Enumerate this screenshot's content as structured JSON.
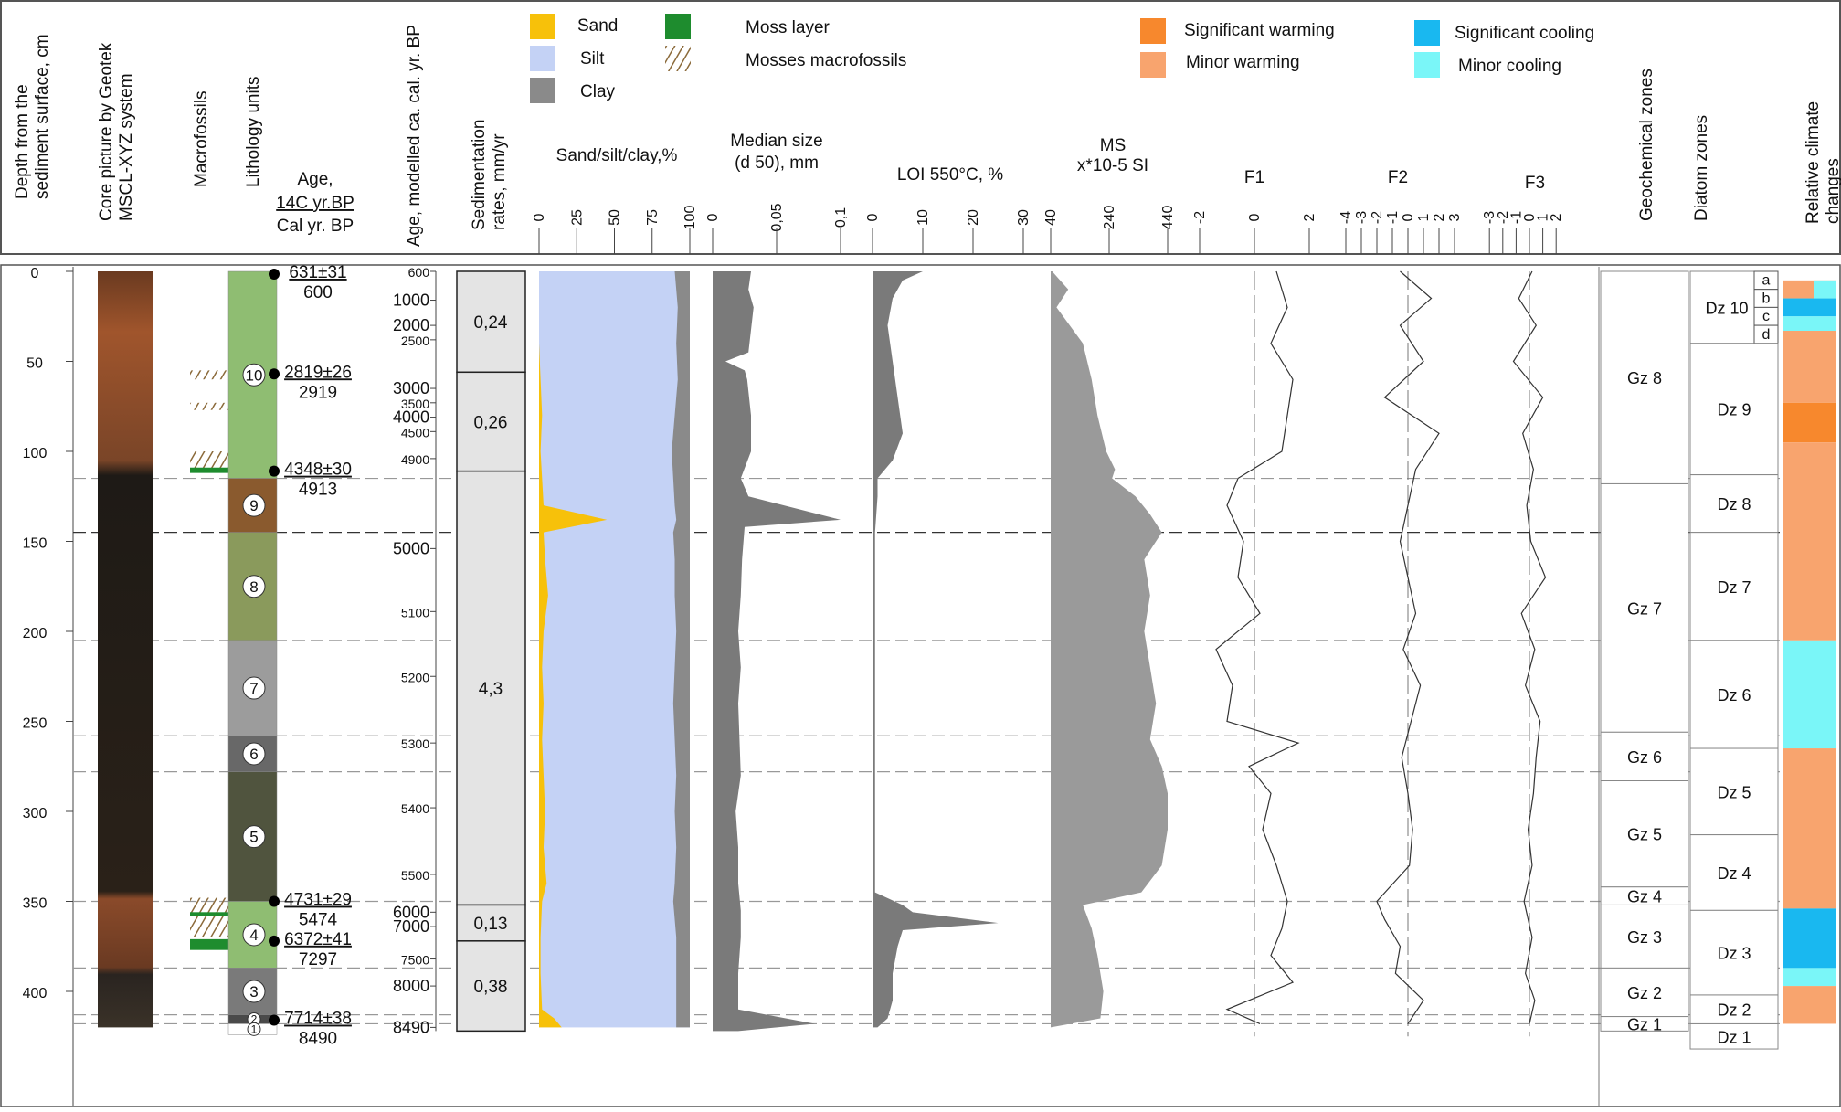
{
  "colors": {
    "sand": "#f7c10a",
    "silt": "#c4d2f5",
    "clay": "#8a8a8a",
    "moss": "#1e8c2e",
    "mosses_macro": "#8b6a3a",
    "sig_warm": "#f7882d",
    "minor_warm": "#f8a46e",
    "sig_cool": "#19b8f0",
    "minor_cool": "#7af6f8",
    "curve_fill": "#7a7a7a",
    "ms_fill": "#9a9a9a"
  },
  "headers": {
    "depth": [
      "Depth from the",
      "sediment surface, cm"
    ],
    "core": [
      "Core picture by Geotek",
      "MSCL-XYZ system"
    ],
    "macrofossils": "Macrofossils",
    "lithology": "Lithology units",
    "age14c": [
      "Age,",
      "14C yr.BP",
      "Cal yr. BP"
    ],
    "age_model": "Age, modelled ca. cal. yr. BP",
    "sed_rates": [
      "Sedimentation",
      "rates, mm/yr"
    ],
    "sand_silt_clay": "Sand/silt/clay,%",
    "median": [
      "Median size",
      "(d 50), mm"
    ],
    "loi": "LOI 550°C, %",
    "ms": [
      "MS",
      "x*10-5 SI"
    ],
    "f1": "F1",
    "f2": "F2",
    "f3": "F3",
    "geochem": "Geochemical zones",
    "diatom": "Diatom zones",
    "climate": [
      "Relative climate",
      "changes"
    ]
  },
  "legend": [
    {
      "label": "Sand",
      "color": "sand"
    },
    {
      "label": "Silt",
      "color": "silt"
    },
    {
      "label": "Clay",
      "color": "clay"
    },
    {
      "label": "Moss layer",
      "color": "moss"
    },
    {
      "label": "Mosses macrofossils",
      "color": "mosses_macro",
      "pattern": "hatch"
    },
    {
      "label": "Significant warming",
      "color": "sig_warm"
    },
    {
      "label": "Minor warming",
      "color": "minor_warm"
    },
    {
      "label": "Significant cooling",
      "color": "sig_cool"
    },
    {
      "label": "Minor cooling",
      "color": "minor_cool"
    }
  ],
  "chart_data": {
    "type": "stratigraphic",
    "depth_axis": {
      "label": "Depth from the sediment surface, cm",
      "ticks": [
        0,
        50,
        100,
        150,
        200,
        250,
        300,
        350,
        400
      ],
      "range": [
        0,
        425
      ]
    },
    "lithology_units": [
      {
        "unit": "10",
        "top": 0,
        "bottom": 115,
        "color": "#8fbd72"
      },
      {
        "unit": "9",
        "top": 115,
        "bottom": 145,
        "color": "#8a5a2e"
      },
      {
        "unit": "8",
        "top": 145,
        "bottom": 205,
        "color": "#8a9a5c"
      },
      {
        "unit": "7",
        "top": 205,
        "bottom": 258,
        "color": "#9c9c9c"
      },
      {
        "unit": "6",
        "top": 258,
        "bottom": 278,
        "color": "#686868"
      },
      {
        "unit": "5",
        "top": 278,
        "bottom": 350,
        "color": "#50543e"
      },
      {
        "unit": "4",
        "top": 350,
        "bottom": 387,
        "color": "#8fbd72"
      },
      {
        "unit": "3",
        "top": 387,
        "bottom": 413,
        "color": "#7a7a7a"
      },
      {
        "unit": "2",
        "top": 413,
        "bottom": 418,
        "color": "#4a4a4a"
      },
      {
        "unit": "1",
        "top": 418,
        "bottom": 424,
        "color": "#ffffff"
      }
    ],
    "macrofossils": [
      {
        "type": "mosses_macro",
        "top": 55,
        "bottom": 60
      },
      {
        "type": "mosses_macro",
        "top": 73,
        "bottom": 77
      },
      {
        "type": "mosses_macro",
        "top": 100,
        "bottom": 110
      },
      {
        "type": "moss",
        "top": 109,
        "bottom": 112
      },
      {
        "type": "mosses_macro",
        "top": 348,
        "bottom": 370
      },
      {
        "type": "moss",
        "top": 356,
        "bottom": 358
      },
      {
        "type": "moss",
        "top": 371,
        "bottom": 377
      }
    ],
    "radiocarbon_dates": [
      {
        "depth": 0,
        "c14": "631±31",
        "cal": "600"
      },
      {
        "depth": 57,
        "c14": "2819±26",
        "cal": "2919"
      },
      {
        "depth": 111,
        "c14": "4348±30",
        "cal": "4913"
      },
      {
        "depth": 350,
        "c14": "4731±29",
        "cal": "5474"
      },
      {
        "depth": 372,
        "c14": "6372±41",
        "cal": "7297"
      },
      {
        "depth": 416,
        "c14": "7714±38",
        "cal": "8490"
      }
    ],
    "age_model_ticks": [
      {
        "age": "600",
        "depth": 0
      },
      {
        "age": "1000",
        "depth": 16
      },
      {
        "age": "2000",
        "depth": 30
      },
      {
        "age": "2500",
        "depth": 38
      },
      {
        "age": "3000",
        "depth": 65
      },
      {
        "age": "3500",
        "depth": 73
      },
      {
        "age": "4000",
        "depth": 81
      },
      {
        "age": "4500",
        "depth": 89
      },
      {
        "age": "4900",
        "depth": 104
      },
      {
        "age": "5000",
        "depth": 154
      },
      {
        "age": "5100",
        "depth": 189
      },
      {
        "age": "5200",
        "depth": 225
      },
      {
        "age": "5300",
        "depth": 262
      },
      {
        "age": "5400",
        "depth": 298
      },
      {
        "age": "5500",
        "depth": 335
      },
      {
        "age": "6000",
        "depth": 356
      },
      {
        "age": "7000",
        "depth": 364
      },
      {
        "age": "7500",
        "depth": 382
      },
      {
        "age": "8000",
        "depth": 397
      },
      {
        "age": "8490",
        "depth": 420
      }
    ],
    "sed_rates": [
      {
        "top": 0,
        "bottom": 56,
        "value": "0,24"
      },
      {
        "top": 56,
        "bottom": 111,
        "value": "0,26"
      },
      {
        "top": 111,
        "bottom": 352,
        "value": "4,3"
      },
      {
        "top": 352,
        "bottom": 372,
        "value": "0,13"
      },
      {
        "top": 372,
        "bottom": 422,
        "value": "0,38"
      }
    ],
    "grain_size": {
      "ticks": [
        "0",
        "25",
        "50",
        "75",
        "100"
      ],
      "range": [
        0,
        100
      ],
      "depth": [
        0,
        20,
        40,
        60,
        80,
        100,
        115,
        130,
        138,
        145,
        160,
        180,
        200,
        220,
        240,
        260,
        280,
        300,
        320,
        340,
        350,
        370,
        390,
        410,
        415,
        420
      ],
      "sand": [
        0,
        0,
        0,
        1,
        2,
        1,
        2,
        3,
        45,
        3,
        4,
        6,
        3,
        2,
        3,
        2,
        3,
        4,
        3,
        5,
        2,
        1,
        1,
        2,
        10,
        15
      ],
      "clay": [
        10,
        8,
        9,
        8,
        10,
        12,
        11,
        10,
        9,
        11,
        10,
        10,
        9,
        10,
        11,
        10,
        9,
        10,
        9,
        10,
        11,
        9,
        9,
        9,
        9,
        9
      ]
    },
    "median": {
      "ticks": [
        "0",
        "0,05",
        "0,1"
      ],
      "range": [
        0,
        0.1
      ],
      "depth": [
        0,
        10,
        20,
        45,
        50,
        55,
        60,
        80,
        100,
        115,
        125,
        138,
        142,
        160,
        180,
        200,
        220,
        240,
        260,
        280,
        300,
        320,
        340,
        355,
        370,
        390,
        410,
        418,
        422
      ],
      "values": [
        0.03,
        0.028,
        0.032,
        0.028,
        0.01,
        0.025,
        0.027,
        0.03,
        0.03,
        0.022,
        0.028,
        0.1,
        0.025,
        0.023,
        0.022,
        0.02,
        0.022,
        0.02,
        0.021,
        0.022,
        0.018,
        0.02,
        0.02,
        0.022,
        0.022,
        0.02,
        0.02,
        0.08,
        0.02
      ]
    },
    "loi": {
      "ticks": [
        "0",
        "10",
        "20",
        "30"
      ],
      "range": [
        0,
        30
      ],
      "depth": [
        0,
        5,
        15,
        30,
        50,
        70,
        90,
        105,
        115,
        125,
        145,
        200,
        250,
        300,
        345,
        352,
        356,
        362,
        366,
        375,
        390,
        405,
        415,
        420
      ],
      "values": [
        10,
        6,
        4,
        3,
        4,
        5,
        6,
        4,
        1,
        1,
        0.5,
        0.5,
        0.5,
        0.5,
        0.5,
        6,
        8,
        25,
        6,
        5,
        4,
        4,
        3,
        1
      ]
    },
    "ms": {
      "ticks": [
        "40",
        "240",
        "440"
      ],
      "range": [
        40,
        440
      ],
      "depth": [
        0,
        10,
        20,
        40,
        60,
        80,
        100,
        110,
        115,
        125,
        135,
        145,
        160,
        180,
        200,
        220,
        240,
        260,
        275,
        290,
        310,
        330,
        345,
        352,
        365,
        380,
        400,
        415,
        420
      ],
      "values": [
        45,
        100,
        60,
        150,
        180,
        200,
        230,
        260,
        250,
        330,
        380,
        420,
        360,
        380,
        360,
        380,
        400,
        380,
        420,
        440,
        440,
        420,
        350,
        150,
        180,
        200,
        220,
        210,
        40
      ]
    },
    "f1": {
      "ticks": [
        "-2",
        "0",
        "2"
      ],
      "range": [
        -2.5,
        2.5
      ],
      "depth": [
        0,
        20,
        40,
        60,
        80,
        100,
        115,
        130,
        150,
        170,
        190,
        210,
        230,
        250,
        262,
        275,
        290,
        310,
        330,
        350,
        365,
        380,
        395,
        410,
        418
      ],
      "values": [
        0.8,
        1.2,
        0.6,
        1.4,
        1.2,
        1.0,
        -0.6,
        -1.0,
        -0.4,
        -0.6,
        0.2,
        -1.4,
        -0.8,
        -1.0,
        1.6,
        -0.2,
        0.6,
        0.3,
        0.8,
        1.2,
        1.0,
        0.6,
        1.4,
        -1.0,
        0.2
      ]
    },
    "f2": {
      "ticks": [
        "-4",
        "-3",
        "-2",
        "-1",
        "0",
        "1",
        "2",
        "3"
      ],
      "range": [
        -4,
        3
      ],
      "depth": [
        0,
        15,
        30,
        50,
        70,
        90,
        110,
        130,
        150,
        170,
        190,
        210,
        230,
        250,
        270,
        290,
        310,
        330,
        350,
        360,
        375,
        390,
        405,
        418
      ],
      "values": [
        -0.5,
        1.5,
        -0.5,
        1.0,
        -1.5,
        2.0,
        0.5,
        0.0,
        -0.5,
        0.0,
        0.5,
        -0.3,
        0.8,
        0.2,
        -0.4,
        0.0,
        0.3,
        0.1,
        -2.0,
        -1.5,
        -0.5,
        -0.8,
        1.0,
        0.0
      ]
    },
    "f3": {
      "ticks": [
        "-3",
        "-2",
        "-1",
        "0",
        "1",
        "2"
      ],
      "range": [
        -3.5,
        2.5
      ],
      "depth": [
        0,
        15,
        30,
        50,
        70,
        90,
        110,
        130,
        150,
        170,
        190,
        210,
        230,
        250,
        270,
        290,
        310,
        330,
        350,
        370,
        390,
        405,
        418
      ],
      "values": [
        0.2,
        -0.8,
        0.5,
        -1.2,
        1.0,
        -0.5,
        0.3,
        -0.2,
        0.1,
        1.2,
        -0.6,
        0.4,
        -0.3,
        0.8,
        0.5,
        0.3,
        -0.1,
        0.2,
        -0.4,
        0.2,
        -0.3,
        0.4,
        0.0
      ]
    },
    "geochem_zones": [
      {
        "label": "Gz 8",
        "top": 0,
        "bottom": 118
      },
      {
        "label": "Gz 7",
        "top": 118,
        "bottom": 256
      },
      {
        "label": "Gz 6",
        "top": 256,
        "bottom": 283
      },
      {
        "label": "Gz 5",
        "top": 283,
        "bottom": 342
      },
      {
        "label": "Gz 4",
        "top": 342,
        "bottom": 352
      },
      {
        "label": "Gz 3",
        "top": 352,
        "bottom": 387
      },
      {
        "label": "Gz 2",
        "top": 387,
        "bottom": 414
      },
      {
        "label": "Gz 1",
        "top": 414,
        "bottom": 422
      }
    ],
    "diatom_zones": [
      {
        "label": "Dz 10",
        "top": 0,
        "bottom": 40,
        "sub": [
          "a",
          "b",
          "c",
          "d"
        ]
      },
      {
        "label": "Dz 9",
        "top": 40,
        "bottom": 113
      },
      {
        "label": "Dz 8",
        "top": 113,
        "bottom": 145
      },
      {
        "label": "Dz 7",
        "top": 145,
        "bottom": 205
      },
      {
        "label": "Dz 6",
        "top": 205,
        "bottom": 265
      },
      {
        "label": "Dz 5",
        "top": 265,
        "bottom": 313
      },
      {
        "label": "Dz 4",
        "top": 313,
        "bottom": 355
      },
      {
        "label": "Dz 3",
        "top": 355,
        "bottom": 402
      },
      {
        "label": "Dz 2",
        "top": 402,
        "bottom": 418
      },
      {
        "label": "Dz 1",
        "top": 418,
        "bottom": 432
      }
    ],
    "climate": [
      {
        "top": 5,
        "bottom": 15,
        "type": "minor_warm"
      },
      {
        "top": 15,
        "bottom": 25,
        "type": "sig_cool"
      },
      {
        "top": 25,
        "bottom": 33,
        "type": "minor_cool"
      },
      {
        "top": 33,
        "bottom": 73,
        "type": "minor_warm"
      },
      {
        "top": 73,
        "bottom": 95,
        "type": "sig_warm"
      },
      {
        "top": 95,
        "bottom": 205,
        "type": "minor_warm"
      },
      {
        "top": 205,
        "bottom": 265,
        "type": "minor_cool"
      },
      {
        "top": 265,
        "bottom": 354,
        "type": "minor_warm"
      },
      {
        "top": 354,
        "bottom": 387,
        "type": "sig_cool"
      },
      {
        "top": 387,
        "bottom": 397,
        "type": "minor_cool"
      },
      {
        "top": 397,
        "bottom": 418,
        "type": "minor_warm"
      }
    ],
    "boundaries": [
      115,
      145,
      205,
      258,
      278,
      350,
      387,
      413,
      418
    ]
  }
}
